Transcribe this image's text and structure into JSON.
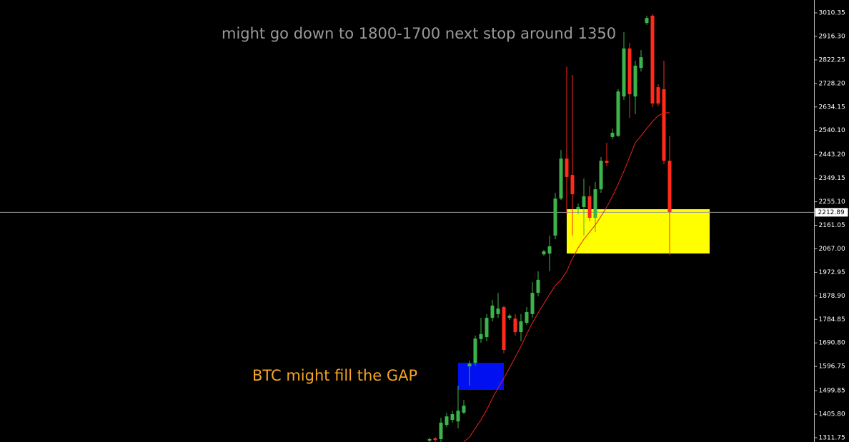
{
  "chart_data": {
    "type": "candlestick",
    "annotations": [
      {
        "text": "might go down to 1800-1700 next stop around 1350",
        "color": "#9a9a9a"
      },
      {
        "text": "BTC might fill the GAP",
        "color": "#f5a623"
      }
    ],
    "up_color": "#3cb44b",
    "down_color": "#ff2a1a",
    "open": [
      1300,
      1309,
      1306,
      1363,
      1383,
      1377,
      1412,
      1597,
      1611,
      1706,
      1714,
      1791,
      1806,
      1834,
      1791,
      1788,
      1734,
      1771,
      1806,
      1891,
      2045,
      2048,
      2120,
      2268,
      2428,
      2362,
      2225,
      2234,
      2277,
      2191,
      2305,
      2419,
      2514,
      2519,
      2676,
      2868,
      2676,
      2790,
      2970,
      2999,
      2713,
      2705,
      2419
    ],
    "high": [
      1312,
      1314,
      1392,
      1411,
      1420,
      1520,
      1463,
      1620,
      1720,
      1791,
      1806,
      1863,
      1891,
      1840,
      1806,
      1806,
      1806,
      1834,
      1934,
      1977,
      2062,
      2120,
      2291,
      2462,
      2796,
      2762,
      2248,
      2348,
      2319,
      2334,
      2434,
      2491,
      2548,
      2705,
      2933,
      2890,
      2819,
      2862,
      2999,
      3005,
      2725,
      2819,
      2519
    ],
    "low": [
      1295,
      1295,
      1295,
      1354,
      1372,
      1349,
      1406,
      1520,
      1600,
      1691,
      1697,
      1777,
      1791,
      1649,
      1783,
      1720,
      1697,
      1763,
      1791,
      1877,
      2040,
      1977,
      2105,
      2262,
      2205,
      2120,
      2205,
      2120,
      2177,
      2134,
      2291,
      2399,
      2505,
      2514,
      2662,
      2591,
      2605,
      2776,
      2962,
      2633,
      2639,
      2405,
      2042
    ],
    "close": [
      1306,
      1303,
      1372,
      1397,
      1406,
      1420,
      1440,
      1608,
      1708,
      1726,
      1791,
      1840,
      1828,
      1663,
      1800,
      1734,
      1777,
      1814,
      1891,
      1943,
      2057,
      2077,
      2268,
      2428,
      2354,
      2285,
      2234,
      2277,
      2191,
      2305,
      2419,
      2411,
      2531,
      2696,
      2868,
      2685,
      2799,
      2833,
      2990,
      2648,
      2648,
      2419,
      2214
    ],
    "moving_average": {
      "color": "#e8231b",
      "values": [
        null,
        null,
        null,
        null,
        null,
        null,
        1295,
        1314,
        1349,
        1383,
        1423,
        1469,
        1511,
        1549,
        1591,
        1634,
        1677,
        1726,
        1771,
        1811,
        1848,
        1885,
        1920,
        1943,
        1977,
        2028,
        2071,
        2105,
        2134,
        2162,
        2197,
        2234,
        2277,
        2325,
        2377,
        2434,
        2491,
        2519,
        2548,
        2576,
        2599,
        2611,
        2611
      ]
    },
    "zones": [
      {
        "low": 1503,
        "high": 1611.5,
        "color": "#0010f0"
      },
      {
        "low": 2048.3,
        "high": 2225.3,
        "color": "#ffff00"
      }
    ],
    "current_price": 2212.89,
    "ylim": [
      1294.6,
      3061.7
    ],
    "yticks": [
      3010.35,
      {
        "value": 2916.3,
        "label": "2916.30"
      },
      2822.25,
      {
        "value": 2728.2,
        "label": "2728.20"
      },
      2634.15,
      {
        "value": 2540.1,
        "label": "2540.10"
      },
      {
        "value": 2443.2,
        "label": "2443.20"
      },
      2349.15,
      {
        "value": 2255.1,
        "label": "2255.10"
      },
      2161.05,
      {
        "value": 2067,
        "label": "2067.00"
      },
      1972.95,
      {
        "value": 1878.9,
        "label": "1878.90"
      },
      1784.85,
      {
        "value": 1690.8,
        "label": "1690.80"
      },
      1596.75,
      1499.85,
      {
        "value": 1405.8,
        "label": "1405.80"
      },
      1311.75
    ]
  }
}
